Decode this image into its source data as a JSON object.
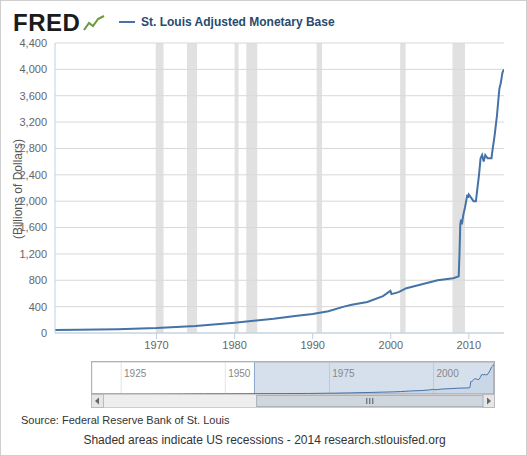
{
  "chart_data": {
    "type": "line",
    "logo": "FRED",
    "y_label": "(Billions of Dollars)",
    "source": "Source: Federal Reserve Bank of St. Louis",
    "note": "Shaded areas indicate US recessions - 2014 research.stlouisfed.org",
    "legend": "top",
    "grid": true,
    "xlim": [
      1957,
      2014.5
    ],
    "xticks": [
      1970,
      1980,
      1990,
      2000,
      2010
    ],
    "ylim": [
      0,
      4400
    ],
    "yticks": [
      0,
      400,
      800,
      {
        "value": 1200,
        "label": "1,200"
      },
      {
        "value": 1600,
        "label": "1,600"
      },
      {
        "value": 2000,
        "label": "2,000"
      },
      {
        "value": 2400,
        "label": "2,400"
      },
      {
        "value": 2800,
        "label": "2,800"
      },
      {
        "value": 3200,
        "label": "3,200"
      },
      {
        "value": 3600,
        "label": "3,600"
      },
      {
        "value": 4000,
        "label": "4,000"
      },
      {
        "value": 4400,
        "label": "4,400"
      }
    ],
    "recessions": [
      [
        1969.9,
        1970.9
      ],
      [
        1973.9,
        1975.2
      ],
      [
        1980.0,
        1980.5
      ],
      [
        1981.5,
        1982.9
      ],
      [
        1990.5,
        1991.2
      ],
      [
        2001.2,
        2001.9
      ],
      [
        2007.9,
        2009.5
      ]
    ],
    "navigator": {
      "xlim": [
        1918,
        2014.5
      ],
      "xticks": [
        1925,
        1950,
        1975,
        2000
      ]
    },
    "x": [
      1918,
      1925,
      1930,
      1935,
      1940,
      1945,
      1950,
      1955,
      1957,
      1960,
      1965,
      1970,
      1975,
      1980,
      1985,
      1988,
      1990,
      1992,
      1994,
      1995,
      1997,
      1999,
      1999.95,
      2000.1,
      2001,
      2002,
      2004,
      2006,
      2008,
      2008.7,
      2008.8,
      2008.9,
      2009.0,
      2009.1,
      2009.3,
      2009.5,
      2009.8,
      2009.9,
      2010.0,
      2010.3,
      2010.6,
      2010.9,
      2011.0,
      2011.3,
      2011.5,
      2011.7,
      2011.9,
      2012.1,
      2012.4,
      2012.7,
      2012.9,
      2013.0,
      2013.3,
      2013.6,
      2013.9,
      2014.1,
      2014.3,
      2014.5
    ],
    "series": [
      {
        "name": "St. Louis Adjusted Monetary Base",
        "color": "#4572a7",
        "values": [
          5,
          7,
          7,
          10,
          20,
          35,
          38,
          42,
          47,
          49,
          58,
          76,
          108,
          155,
          215,
          260,
          290,
          330,
          400,
          430,
          470,
          560,
          640,
          590,
          620,
          680,
          740,
          800,
          830,
          860,
          1200,
          1650,
          1720,
          1650,
          1800,
          1900,
          2100,
          2050,
          2100,
          2050,
          2000,
          2000,
          2100,
          2400,
          2650,
          2700,
          2600,
          2700,
          2650,
          2650,
          2650,
          2750,
          3000,
          3300,
          3700,
          3800,
          3950,
          4000
        ]
      }
    ]
  }
}
